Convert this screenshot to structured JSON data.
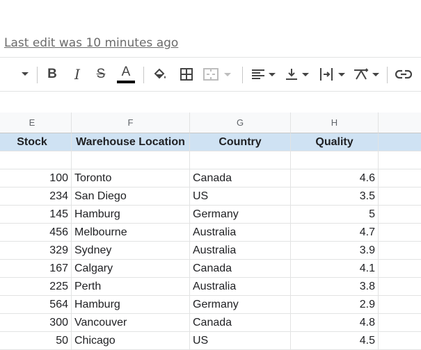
{
  "last_edit": "Last edit was 10 minutes ago",
  "toolbar": {
    "icons": [
      "chevron-down-icon",
      "bold-icon",
      "italic-icon",
      "strikethrough-icon",
      "text-color-icon",
      "fill-color-icon",
      "borders-icon",
      "merge-cells-icon",
      "horizontal-align-icon",
      "vertical-align-icon",
      "text-wrap-icon",
      "text-rotation-icon",
      "insert-link-icon"
    ],
    "bold_label": "B",
    "italic_label": "I",
    "strike_label": "S",
    "text_color_label": "A",
    "text_color": "#000000"
  },
  "columns": [
    "E",
    "F",
    "G",
    "H",
    ""
  ],
  "headers": [
    "Stock",
    "Warehouse Location",
    "Country",
    "Quality",
    ""
  ],
  "rows": [
    [
      "",
      "",
      "",
      ""
    ],
    [
      "100",
      "Toronto",
      "Canada",
      "4.6"
    ],
    [
      "234",
      "San Diego",
      "US",
      "3.5"
    ],
    [
      "145",
      "Hamburg",
      "Germany",
      "5"
    ],
    [
      "456",
      "Melbourne",
      "Australia",
      "4.7"
    ],
    [
      "329",
      "Sydney",
      "Australia",
      "3.9"
    ],
    [
      "167",
      "Calgary",
      "Canada",
      "4.1"
    ],
    [
      "225",
      "Perth",
      "Australia",
      "3.8"
    ],
    [
      "564",
      "Hamburg",
      "Germany",
      "2.9"
    ],
    [
      "300",
      "Vancouver",
      "Canada",
      "4.8"
    ],
    [
      "50",
      "Chicago",
      "US",
      "4.5"
    ]
  ],
  "colors": {
    "header_fill": "#cfe2f3",
    "grid_line": "#e2e3e3",
    "col_header_bg": "#f8f9fa"
  }
}
